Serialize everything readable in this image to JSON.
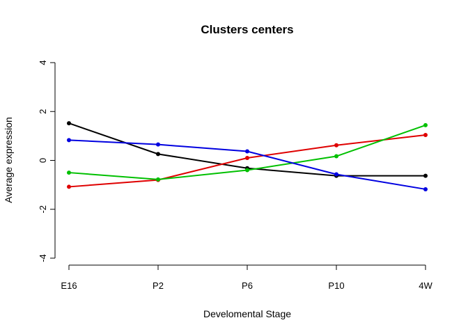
{
  "chart_data": {
    "type": "line",
    "title": "Clusters centers",
    "xlabel": "Develomental Stage",
    "ylabel": "Average expression",
    "categories": [
      "E16",
      "P2",
      "P6",
      "P10",
      "4W"
    ],
    "ylim": [
      -4,
      4
    ],
    "yticks": [
      -4,
      -2,
      0,
      2,
      4
    ],
    "grid": false,
    "legend": "none",
    "series": [
      {
        "color": "#000000",
        "values": [
          1.52,
          0.26,
          -0.32,
          -0.63,
          -0.63
        ]
      },
      {
        "color": "#df0000",
        "values": [
          -1.08,
          -0.8,
          0.1,
          0.62,
          1.04
        ]
      },
      {
        "color": "#00c000",
        "values": [
          -0.5,
          -0.78,
          -0.4,
          0.17,
          1.44
        ]
      },
      {
        "color": "#0000e0",
        "values": [
          0.83,
          0.65,
          0.37,
          -0.57,
          -1.18
        ]
      }
    ]
  }
}
